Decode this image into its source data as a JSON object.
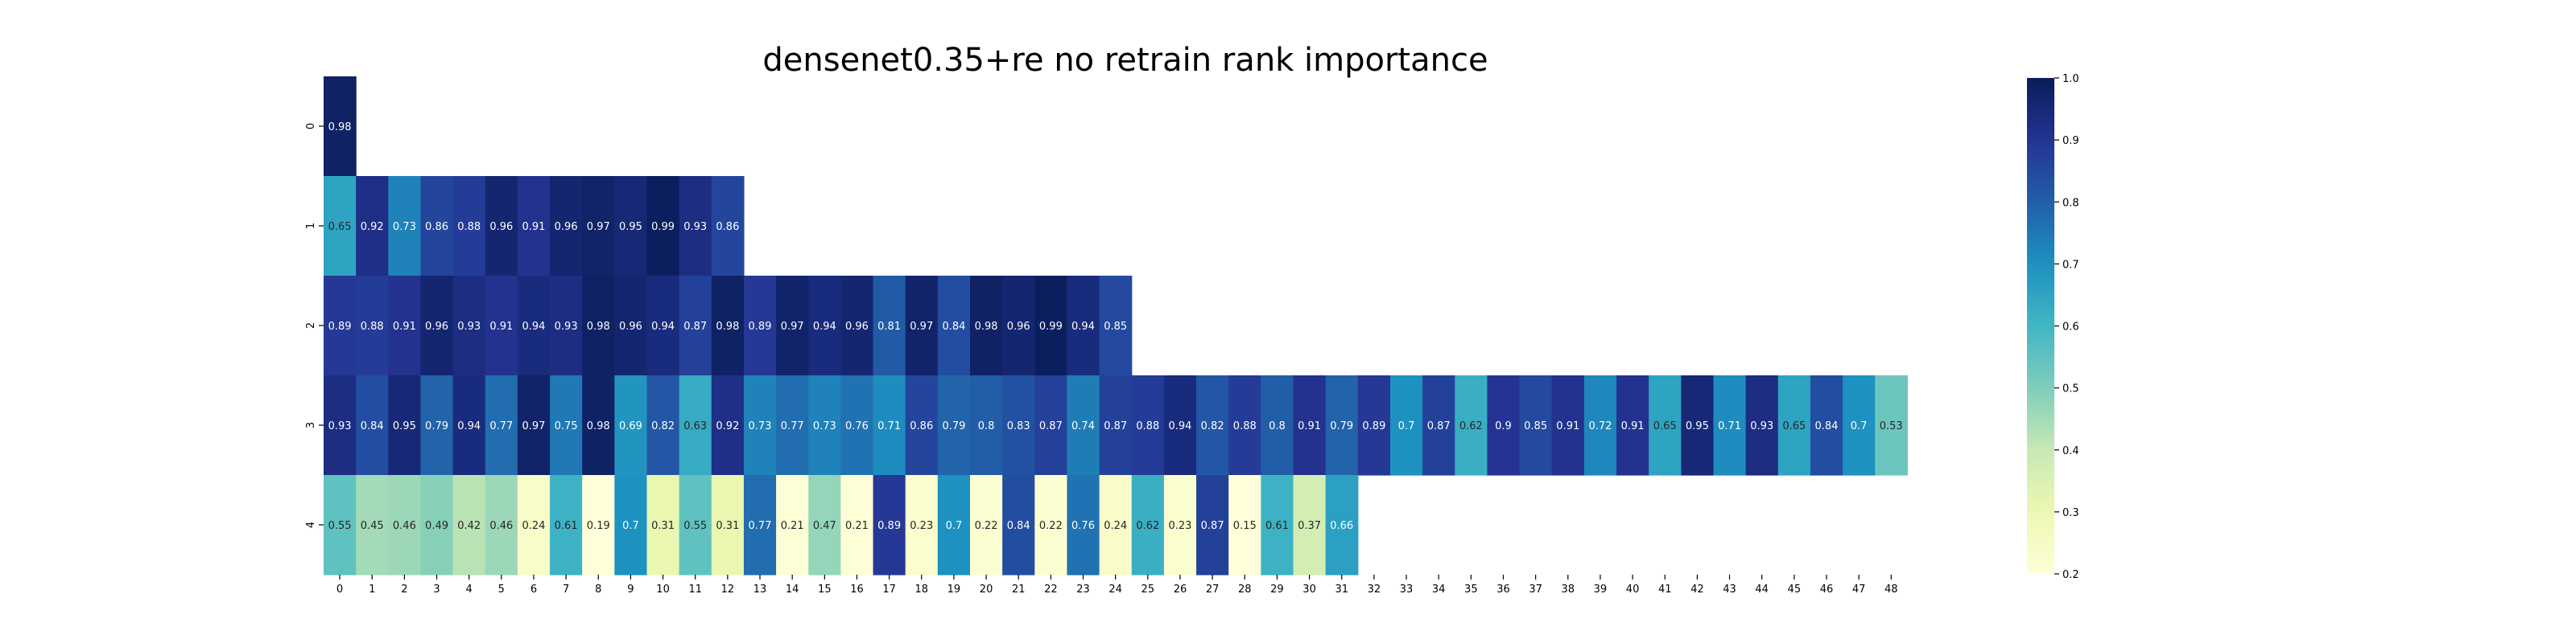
{
  "chart_data": {
    "type": "heatmap",
    "title": "densenet0.35+re no retrain rank importance",
    "xlabel": "",
    "ylabel": "",
    "colormap": "YlGnBu",
    "vmin": 0.2,
    "vmax": 1.0,
    "grid": false,
    "x_ticks": [
      "0",
      "1",
      "2",
      "3",
      "4",
      "5",
      "6",
      "7",
      "8",
      "9",
      "10",
      "11",
      "12",
      "13",
      "14",
      "15",
      "16",
      "17",
      "18",
      "19",
      "20",
      "21",
      "22",
      "23",
      "24",
      "25",
      "26",
      "27",
      "28",
      "29",
      "30",
      "31",
      "32",
      "33",
      "34",
      "35",
      "36",
      "37",
      "38",
      "39",
      "40",
      "41",
      "42",
      "43",
      "44",
      "45",
      "46",
      "47",
      "48"
    ],
    "y_ticks": [
      "0",
      "1",
      "2",
      "3",
      "4"
    ],
    "rows": [
      [
        0.98
      ],
      [
        0.65,
        0.92,
        0.73,
        0.86,
        0.88,
        0.96,
        0.91,
        0.96,
        0.97,
        0.95,
        0.99,
        0.93,
        0.86
      ],
      [
        0.89,
        0.88,
        0.91,
        0.96,
        0.93,
        0.91,
        0.94,
        0.93,
        0.98,
        0.96,
        0.94,
        0.87,
        0.98,
        0.89,
        0.97,
        0.94,
        0.96,
        0.81,
        0.97,
        0.84,
        0.98,
        0.96,
        0.99,
        0.94,
        0.85
      ],
      [
        0.93,
        0.84,
        0.95,
        0.79,
        0.94,
        0.77,
        0.97,
        0.75,
        0.98,
        0.69,
        0.82,
        0.63,
        0.92,
        0.73,
        0.77,
        0.73,
        0.76,
        0.71,
        0.86,
        0.79,
        0.8,
        0.83,
        0.87,
        0.74,
        0.87,
        0.88,
        0.94,
        0.82,
        0.88,
        0.8,
        0.91,
        0.79,
        0.89,
        0.7,
        0.87,
        0.62,
        0.9,
        0.85,
        0.91,
        0.72,
        0.91,
        0.65,
        0.95,
        0.71,
        0.93,
        0.65,
        0.84,
        0.7,
        0.53
      ],
      [
        0.55,
        0.45,
        0.46,
        0.49,
        0.42,
        0.46,
        0.24,
        0.61,
        0.19,
        0.7,
        0.31,
        0.55,
        0.31,
        0.77,
        0.21,
        0.47,
        0.21,
        0.89,
        0.23,
        0.7,
        0.22,
        0.84,
        0.22,
        0.76,
        0.24,
        0.62,
        0.23,
        0.87,
        0.15,
        0.61,
        0.37,
        0.66
      ]
    ],
    "colorbar_ticks": [
      "0.2",
      "0.3",
      "0.4",
      "0.5",
      "0.6",
      "0.7",
      "0.8",
      "0.9",
      "1.0"
    ]
  }
}
